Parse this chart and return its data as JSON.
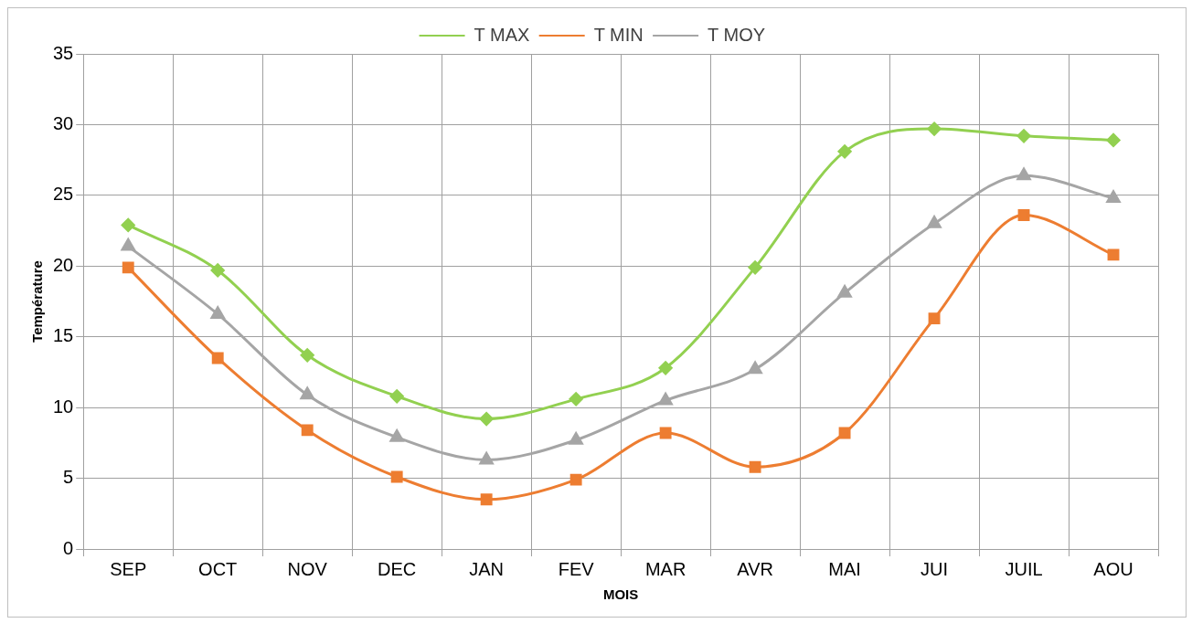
{
  "chart_data": {
    "type": "line",
    "xlabel": "MOIS",
    "ylabel": "Température",
    "categories": [
      "SEP",
      "OCT",
      "NOV",
      "DEC",
      "JAN",
      "FEV",
      "MAR",
      "AVR",
      "MAI",
      "JUI",
      "JUIL",
      "AOU"
    ],
    "series": [
      {
        "name": "T MAX",
        "color": "#92d050",
        "marker": "diamond",
        "values": [
          22.9,
          19.7,
          13.7,
          10.8,
          9.2,
          10.6,
          12.8,
          19.9,
          28.1,
          29.7,
          29.2,
          28.9
        ]
      },
      {
        "name": "T MIN",
        "color": "#ed7d31",
        "marker": "square",
        "values": [
          19.9,
          13.5,
          8.4,
          5.1,
          3.5,
          4.9,
          8.2,
          5.8,
          8.2,
          16.3,
          23.6,
          20.8
        ]
      },
      {
        "name": "T MOY",
        "color": "#a5a5a5",
        "marker": "triangle",
        "values": [
          21.4,
          16.6,
          10.9,
          7.9,
          6.3,
          7.7,
          10.5,
          12.7,
          18.1,
          23.0,
          26.4,
          24.8
        ]
      }
    ],
    "ylim": [
      0,
      35
    ],
    "yticks": [
      0,
      5,
      10,
      15,
      20,
      25,
      30,
      35
    ],
    "grid": true,
    "legend": "top"
  }
}
